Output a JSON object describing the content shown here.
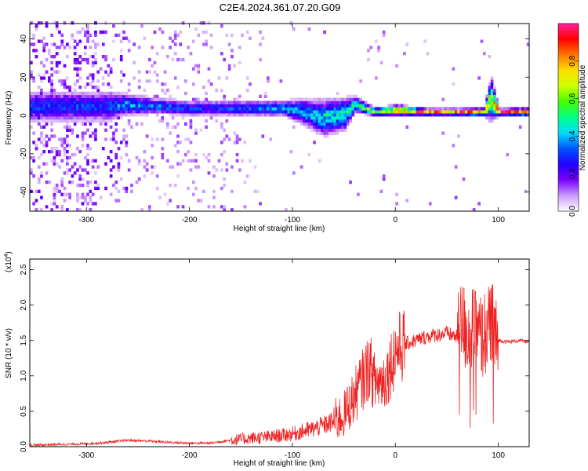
{
  "title": "C2E4.2024.361.07.20.G09",
  "chart_data": [
    {
      "type": "heatmap",
      "xlabel": "Height of straight line (km)",
      "ylabel": "Frequency (Hz)",
      "xlim": [
        -355,
        130
      ],
      "ylim": [
        -50,
        48
      ],
      "xticks": [
        -300,
        -200,
        -100,
        0,
        100
      ],
      "yticks": [
        -40,
        -20,
        0,
        20,
        40
      ],
      "colorbar": {
        "label": "Normalized spectral amplitude",
        "range": [
          0,
          1
        ],
        "ticks": [
          0.0,
          0.2,
          0.4,
          0.6,
          0.8
        ],
        "tick_labels": [
          "0.0",
          "0.2",
          "0.4",
          "0.6",
          "0.8"
        ],
        "colormap": [
          "#ffffff",
          "#cc99ff",
          "#7a00ff",
          "#2200ff",
          "#0055ff",
          "#00ddff",
          "#00ff88",
          "#44ff00",
          "#ccff00",
          "#ffdd00",
          "#ff7700",
          "#ff0000",
          "#ff2299"
        ]
      },
      "ridge": [
        {
          "x": -280,
          "f": 4,
          "spread": 6,
          "amp": 0.3
        },
        {
          "x": -260,
          "f": 5,
          "spread": 4,
          "amp": 0.4
        },
        {
          "x": -230,
          "f": 4,
          "spread": 3,
          "amp": 0.35
        },
        {
          "x": -200,
          "f": 3,
          "spread": 3,
          "amp": 0.3
        },
        {
          "x": -170,
          "f": 3,
          "spread": 3,
          "amp": 0.3
        },
        {
          "x": -140,
          "f": 3,
          "spread": 3,
          "amp": 0.35
        },
        {
          "x": -110,
          "f": 3,
          "spread": 3,
          "amp": 0.4
        },
        {
          "x": -90,
          "f": 1,
          "spread": 5,
          "amp": 0.4
        },
        {
          "x": -70,
          "f": -2,
          "spread": 7,
          "amp": 0.45
        },
        {
          "x": -50,
          "f": 0,
          "spread": 6,
          "amp": 0.5
        },
        {
          "x": -40,
          "f": 5,
          "spread": 3,
          "amp": 0.5
        },
        {
          "x": -20,
          "f": 1,
          "spread": 1.5,
          "amp": 0.7
        },
        {
          "x": 0,
          "f": 2,
          "spread": 2,
          "amp": 0.8
        },
        {
          "x": 30,
          "f": 1,
          "spread": 1.2,
          "amp": 0.9
        },
        {
          "x": 60,
          "f": 1,
          "spread": 1.2,
          "amp": 0.9
        },
        {
          "x": 85,
          "f": 1,
          "spread": 1.5,
          "amp": 0.85
        },
        {
          "x": 92,
          "f": 8,
          "spread": 8,
          "amp": 0.6
        },
        {
          "x": 100,
          "f": 1,
          "spread": 1.2,
          "amp": 0.95
        },
        {
          "x": 130,
          "f": 1,
          "spread": 1.5,
          "amp": 0.8
        }
      ]
    },
    {
      "type": "line",
      "xlabel": "Height of straight line (km)",
      "ylabel": "SNR (10 * v/v)",
      "y_multiplier_label": "(x10",
      "y_multiplier_exp": "4",
      "y_multiplier_close": ")",
      "xlim": [
        -355,
        130
      ],
      "ylim": [
        0,
        2.65
      ],
      "xticks": [
        -300,
        -200,
        -100,
        0,
        100
      ],
      "yticks": [
        0.0,
        0.5,
        1.0,
        1.5,
        2.0,
        2.5
      ],
      "ytick_labels": [
        "0.0",
        "0.5",
        "1.0",
        "1.5",
        "2.0",
        "2.5"
      ],
      "color": "#ee2222",
      "series": [
        {
          "x": [
            -355,
            -330,
            -300,
            -280,
            -260,
            -240,
            -220,
            -200,
            -180,
            -160,
            -140,
            -120,
            -100,
            -80,
            -60,
            -50,
            -40,
            -30,
            -25,
            -20,
            -10,
            0,
            10,
            20,
            30,
            40,
            50,
            60,
            65,
            70,
            75,
            80,
            85,
            90,
            95,
            98,
            100,
            110,
            120,
            130
          ],
          "y": [
            0.02,
            0.03,
            0.04,
            0.06,
            0.09,
            0.08,
            0.06,
            0.05,
            0.05,
            0.09,
            0.12,
            0.14,
            0.18,
            0.25,
            0.35,
            0.45,
            0.7,
            1.0,
            1.15,
            0.9,
            0.95,
            1.35,
            1.45,
            1.5,
            1.55,
            1.58,
            1.6,
            1.55,
            1.75,
            1.6,
            1.65,
            1.55,
            1.55,
            1.65,
            1.7,
            1.48,
            1.5,
            1.48,
            1.5,
            1.48
          ]
        }
      ]
    }
  ]
}
